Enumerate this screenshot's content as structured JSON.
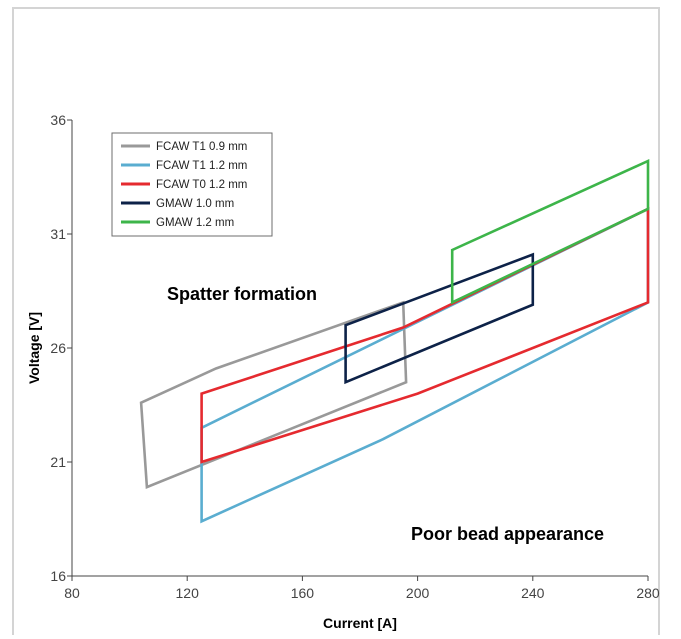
{
  "chart_data": {
    "type": "line",
    "title": "",
    "xlabel": "Current [A]",
    "ylabel": "Voltage [V]",
    "xlim": [
      80,
      280
    ],
    "ylim": [
      16,
      36
    ],
    "xticks": [
      80,
      120,
      160,
      200,
      240,
      280
    ],
    "yticks": [
      16,
      21,
      26,
      31,
      36
    ],
    "grid": false,
    "legend_position": "top-left",
    "annotations": [
      "Spatter formation",
      "Poor bead appearance"
    ],
    "series": [
      {
        "name": "FCAW T1 0.9 mm",
        "color": "#999999",
        "closed": true,
        "points": [
          [
            104,
            23.6
          ],
          [
            130,
            25.1
          ],
          [
            195,
            28.0
          ],
          [
            196,
            24.5
          ],
          [
            106,
            19.9
          ]
        ]
      },
      {
        "name": "FCAW T1 1.2 mm",
        "color": "#5aadd0",
        "closed": true,
        "points": [
          [
            125,
            22.5
          ],
          [
            280,
            32.1
          ],
          [
            280,
            28.0
          ],
          [
            188,
            22.0
          ],
          [
            125,
            18.4
          ]
        ]
      },
      {
        "name": "FCAW T0 1.2 mm",
        "color": "#e52a2f",
        "closed": true,
        "points": [
          [
            125,
            24.0
          ],
          [
            195,
            26.9
          ],
          [
            280,
            32.1
          ],
          [
            280,
            28.0
          ],
          [
            200,
            24.0
          ],
          [
            125,
            21.0
          ]
        ]
      },
      {
        "name": "GMAW 1.0 mm",
        "color": "#0d2248",
        "closed": true,
        "points": [
          [
            175,
            27.0
          ],
          [
            240,
            30.1
          ],
          [
            240,
            27.9
          ],
          [
            175,
            24.5
          ]
        ]
      },
      {
        "name": "GMAW 1.2 mm",
        "color": "#3db54a",
        "closed": true,
        "points": [
          [
            212,
            30.3
          ],
          [
            280,
            34.2
          ],
          [
            280,
            32.1
          ],
          [
            212,
            28.0
          ]
        ]
      }
    ]
  }
}
